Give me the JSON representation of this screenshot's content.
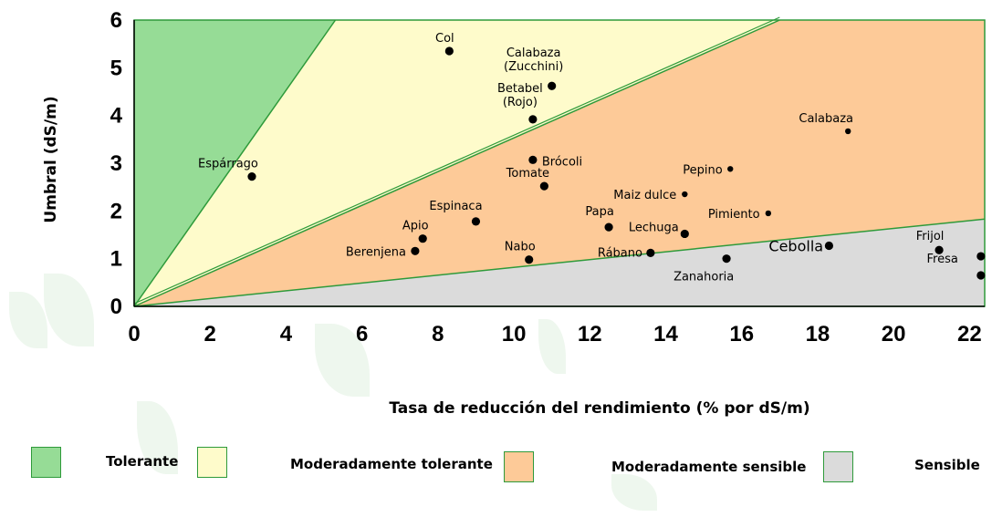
{
  "colors": {
    "tolerant": "#96dc96",
    "moderately_tolerant": "#fefbcb",
    "moderately_sensitive": "#fdca98",
    "sensitive": "#dbdbdb",
    "boundary": "#2e9a3a",
    "point": "#000000",
    "leaf": "#cfe8cf"
  },
  "legend": [
    {
      "key": "tolerant",
      "label": "Tolerante"
    },
    {
      "key": "moderately_tolerant",
      "label": "Moderadamente tolerante"
    },
    {
      "key": "moderately_sensitive",
      "label": "Moderadamente sensible"
    },
    {
      "key": "sensitive",
      "label": "Sensible"
    }
  ],
  "chart_data": {
    "type": "scatter",
    "xlabel": "Tasa de reducción del rendimiento (% por dS/m)",
    "ylabel": "Umbral (dS/m)",
    "xlim": [
      0,
      22.4
    ],
    "ylim": [
      0,
      6
    ],
    "xticks": [
      0,
      2,
      4,
      6,
      8,
      10,
      12,
      14,
      16,
      18,
      20,
      22
    ],
    "yticks": [
      0,
      1,
      2,
      3,
      4,
      5,
      6
    ],
    "grid": false,
    "legend_position": "bottom",
    "zones": [
      {
        "key": "tolerant",
        "lower_boundary_ends_at": {
          "x": 5.3,
          "y": 6
        }
      },
      {
        "key": "moderately_tolerant",
        "lower_boundary_ends_at": {
          "x": 17,
          "y": 6
        }
      },
      {
        "key": "moderately_sensitive",
        "lower_boundary_ends_at": {
          "x": 22.4,
          "y": 1.83
        }
      },
      {
        "key": "sensitive"
      }
    ],
    "points": [
      {
        "label": "Col",
        "x": 8.3,
        "y": 5.35
      },
      {
        "label": "Calabaza\n(Zucchini)",
        "x": 11.0,
        "y": 4.62
      },
      {
        "label": "Betabel\n(Rojo)",
        "x": 10.5,
        "y": 3.92
      },
      {
        "label": "Calabaza",
        "x": 18.8,
        "y": 3.67
      },
      {
        "label": "Espárrago",
        "x": 3.1,
        "y": 2.72
      },
      {
        "label": "Brócoli",
        "x": 10.5,
        "y": 3.07
      },
      {
        "label": "Tomate",
        "x": 10.8,
        "y": 2.52
      },
      {
        "label": "Pepino",
        "x": 15.7,
        "y": 2.88
      },
      {
        "label": "Maiz dulce",
        "x": 14.5,
        "y": 2.35
      },
      {
        "label": "Espinaca",
        "x": 9.0,
        "y": 1.78
      },
      {
        "label": "Papa",
        "x": 12.5,
        "y": 1.66
      },
      {
        "label": "Pimiento",
        "x": 16.7,
        "y": 1.95
      },
      {
        "label": "Apio",
        "x": 7.6,
        "y": 1.42
      },
      {
        "label": "Lechuga",
        "x": 14.5,
        "y": 1.52
      },
      {
        "label": "Berenjena",
        "x": 7.4,
        "y": 1.16
      },
      {
        "label": "Nabo",
        "x": 10.4,
        "y": 0.98
      },
      {
        "label": "Rábano",
        "x": 13.6,
        "y": 1.12
      },
      {
        "label": "Zanahoria",
        "x": 15.6,
        "y": 1.0
      },
      {
        "label": "Cebolla",
        "x": 18.3,
        "y": 1.27
      },
      {
        "label": "Frijol",
        "x": 21.2,
        "y": 1.18
      },
      {
        "label": "Fresa",
        "x": 22.3,
        "y": 1.05
      },
      {
        "label": "",
        "x": 22.3,
        "y": 0.65
      }
    ]
  }
}
